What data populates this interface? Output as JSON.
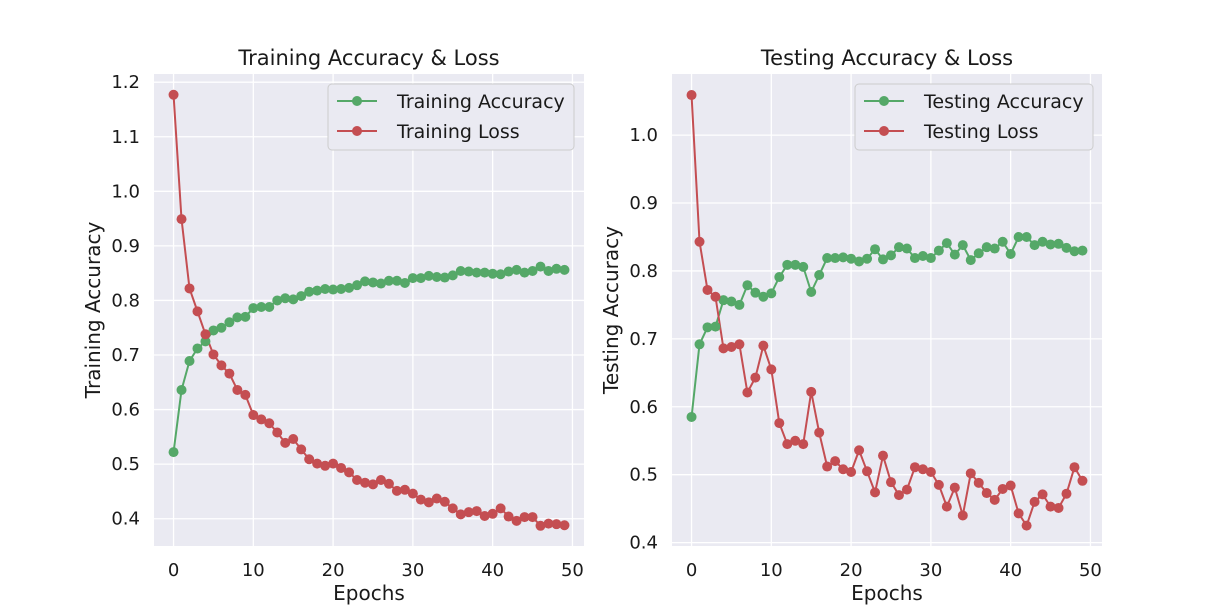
{
  "colors": {
    "accuracy": "#55a868",
    "loss": "#c44e52",
    "plot_bg": "#eaeaf2",
    "grid": "#ffffff"
  },
  "chart_data": [
    {
      "type": "line",
      "title": "Training Accuracy & Loss",
      "xlabel": "Epochs",
      "ylabel": "Training Accuracy",
      "xlim": [
        -2.45,
        51.45
      ],
      "ylim": [
        0.35,
        1.215
      ],
      "xticks": [
        0,
        10,
        20,
        30,
        40,
        50
      ],
      "yticks": [
        0.4,
        0.5,
        0.6,
        0.7,
        0.8,
        0.9,
        1.0,
        1.1,
        1.2
      ],
      "ytick_labels": [
        "0.4",
        "0.5",
        "0.6",
        "0.7",
        "0.8",
        "0.9",
        "1.0",
        "1.1",
        "1.2"
      ],
      "legend_position": "top-right",
      "grid": true,
      "x": [
        0,
        1,
        2,
        3,
        4,
        5,
        6,
        7,
        8,
        9,
        10,
        11,
        12,
        13,
        14,
        15,
        16,
        17,
        18,
        19,
        20,
        21,
        22,
        23,
        24,
        25,
        26,
        27,
        28,
        29,
        30,
        31,
        32,
        33,
        34,
        35,
        36,
        37,
        38,
        39,
        40,
        41,
        42,
        43,
        44,
        45,
        46,
        47,
        48,
        49
      ],
      "series": [
        {
          "name": "Training Accuracy",
          "color_key": "accuracy",
          "values": [
            0.522,
            0.636,
            0.689,
            0.712,
            0.725,
            0.745,
            0.75,
            0.76,
            0.769,
            0.77,
            0.786,
            0.788,
            0.788,
            0.8,
            0.804,
            0.802,
            0.808,
            0.816,
            0.818,
            0.821,
            0.82,
            0.821,
            0.823,
            0.828,
            0.835,
            0.833,
            0.831,
            0.836,
            0.836,
            0.832,
            0.841,
            0.841,
            0.845,
            0.843,
            0.842,
            0.846,
            0.854,
            0.853,
            0.851,
            0.851,
            0.849,
            0.848,
            0.853,
            0.856,
            0.851,
            0.854,
            0.862,
            0.854,
            0.858,
            0.856
          ]
        },
        {
          "name": "Training Loss",
          "color_key": "loss",
          "values": [
            1.177,
            0.949,
            0.822,
            0.78,
            0.738,
            0.701,
            0.681,
            0.666,
            0.636,
            0.627,
            0.59,
            0.582,
            0.575,
            0.558,
            0.539,
            0.546,
            0.527,
            0.509,
            0.501,
            0.497,
            0.501,
            0.493,
            0.485,
            0.471,
            0.466,
            0.463,
            0.471,
            0.464,
            0.451,
            0.453,
            0.446,
            0.435,
            0.43,
            0.437,
            0.431,
            0.419,
            0.408,
            0.412,
            0.414,
            0.405,
            0.409,
            0.419,
            0.404,
            0.396,
            0.403,
            0.403,
            0.387,
            0.391,
            0.39,
            0.388
          ]
        }
      ]
    },
    {
      "type": "line",
      "title": "Testing Accuracy & Loss",
      "xlabel": "Epochs",
      "ylabel": "Testing Accuracy",
      "xlim": [
        -2.45,
        51.45
      ],
      "ylim": [
        0.395,
        1.09
      ],
      "xticks": [
        0,
        10,
        20,
        30,
        40,
        50
      ],
      "yticks": [
        0.4,
        0.5,
        0.6,
        0.7,
        0.8,
        0.9,
        1.0
      ],
      "ytick_labels": [
        "0.4",
        "0.5",
        "0.6",
        "0.7",
        "0.8",
        "0.9",
        "1.0"
      ],
      "legend_position": "top-right",
      "grid": true,
      "x": [
        0,
        1,
        2,
        3,
        4,
        5,
        6,
        7,
        8,
        9,
        10,
        11,
        12,
        13,
        14,
        15,
        16,
        17,
        18,
        19,
        20,
        21,
        22,
        23,
        24,
        25,
        26,
        27,
        28,
        29,
        30,
        31,
        32,
        33,
        34,
        35,
        36,
        37,
        38,
        39,
        40,
        41,
        42,
        43,
        44,
        45,
        46,
        47,
        48,
        49
      ],
      "series": [
        {
          "name": "Testing Accuracy",
          "color_key": "accuracy",
          "values": [
            0.585,
            0.692,
            0.717,
            0.718,
            0.757,
            0.755,
            0.75,
            0.779,
            0.768,
            0.762,
            0.767,
            0.791,
            0.809,
            0.809,
            0.806,
            0.769,
            0.794,
            0.819,
            0.819,
            0.82,
            0.818,
            0.814,
            0.818,
            0.832,
            0.817,
            0.823,
            0.835,
            0.833,
            0.819,
            0.822,
            0.819,
            0.83,
            0.841,
            0.824,
            0.838,
            0.816,
            0.826,
            0.835,
            0.833,
            0.843,
            0.825,
            0.85,
            0.85,
            0.838,
            0.843,
            0.839,
            0.84,
            0.834,
            0.829,
            0.83
          ]
        },
        {
          "name": "Testing Loss",
          "color_key": "loss",
          "values": [
            1.059,
            0.843,
            0.772,
            0.762,
            0.686,
            0.688,
            0.692,
            0.621,
            0.643,
            0.69,
            0.655,
            0.576,
            0.545,
            0.55,
            0.545,
            0.622,
            0.562,
            0.512,
            0.52,
            0.508,
            0.504,
            0.536,
            0.505,
            0.474,
            0.528,
            0.489,
            0.47,
            0.478,
            0.511,
            0.508,
            0.504,
            0.485,
            0.453,
            0.481,
            0.44,
            0.502,
            0.488,
            0.473,
            0.463,
            0.479,
            0.484,
            0.443,
            0.425,
            0.46,
            0.471,
            0.453,
            0.451,
            0.472,
            0.511,
            0.491
          ]
        }
      ]
    }
  ]
}
